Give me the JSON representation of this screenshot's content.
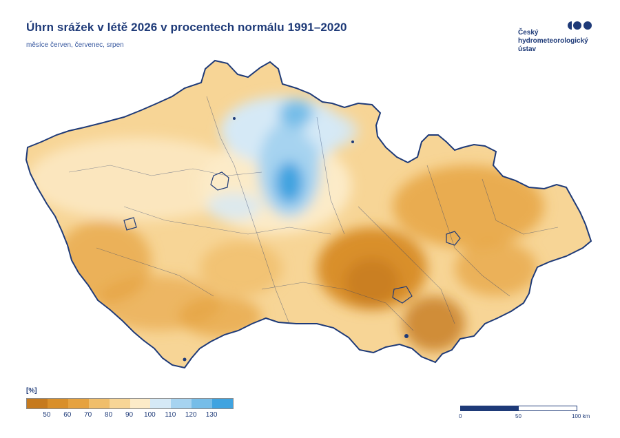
{
  "title": "Úhrn srážek v létě 2026 v procentech normálu 1991–2020",
  "subtitle": "měsíce červen, červenec, srpen",
  "logo": {
    "lines": [
      "Český",
      "hydrometeorologický",
      "ústav"
    ],
    "color": "#1e3a78"
  },
  "legend": {
    "unit": "[%]",
    "tick_labels": [
      "50",
      "60",
      "70",
      "80",
      "90",
      "100",
      "110",
      "120",
      "130"
    ],
    "colors": [
      "#c67a1e",
      "#d98f2a",
      "#e6a23f",
      "#f0be6b",
      "#f7d596",
      "#fcebc8",
      "#d5e9f6",
      "#a6d3f0",
      "#76bde8",
      "#3fa3e0"
    ]
  },
  "scale_bar": {
    "labels": [
      "0",
      "50",
      "100 km"
    ],
    "colors": [
      "#1e3a78",
      "#ffffff"
    ]
  }
}
